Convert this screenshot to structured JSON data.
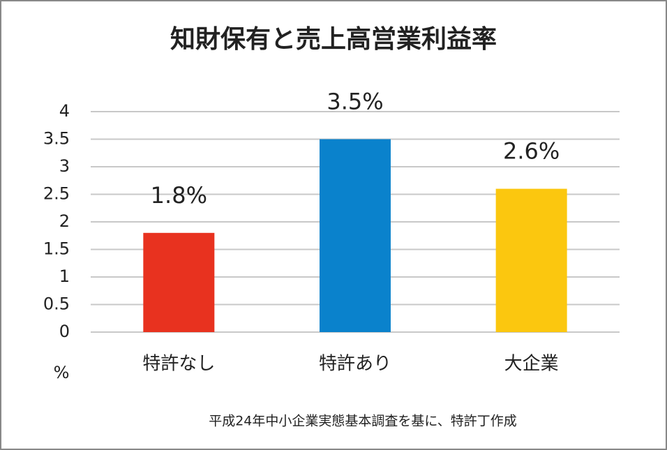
{
  "chart_data": {
    "type": "bar",
    "title": "知財保有と売上高営業利益率",
    "categories": [
      "特許なし",
      "特許あり",
      "大企業"
    ],
    "values": [
      1.8,
      3.5,
      2.6
    ],
    "value_labels": [
      "1.8%",
      "3.5%",
      "2.6%"
    ],
    "colors": [
      "#e8321f",
      "#0a82cc",
      "#fbc70f"
    ],
    "ylabel": "%",
    "ylim": [
      0,
      4
    ],
    "yticks": [
      0,
      0.5,
      1,
      1.5,
      2,
      2.5,
      3,
      3.5,
      4
    ],
    "grid": true,
    "note": "平成24年中小企業実態基本調査を基に、特許丁作成"
  }
}
